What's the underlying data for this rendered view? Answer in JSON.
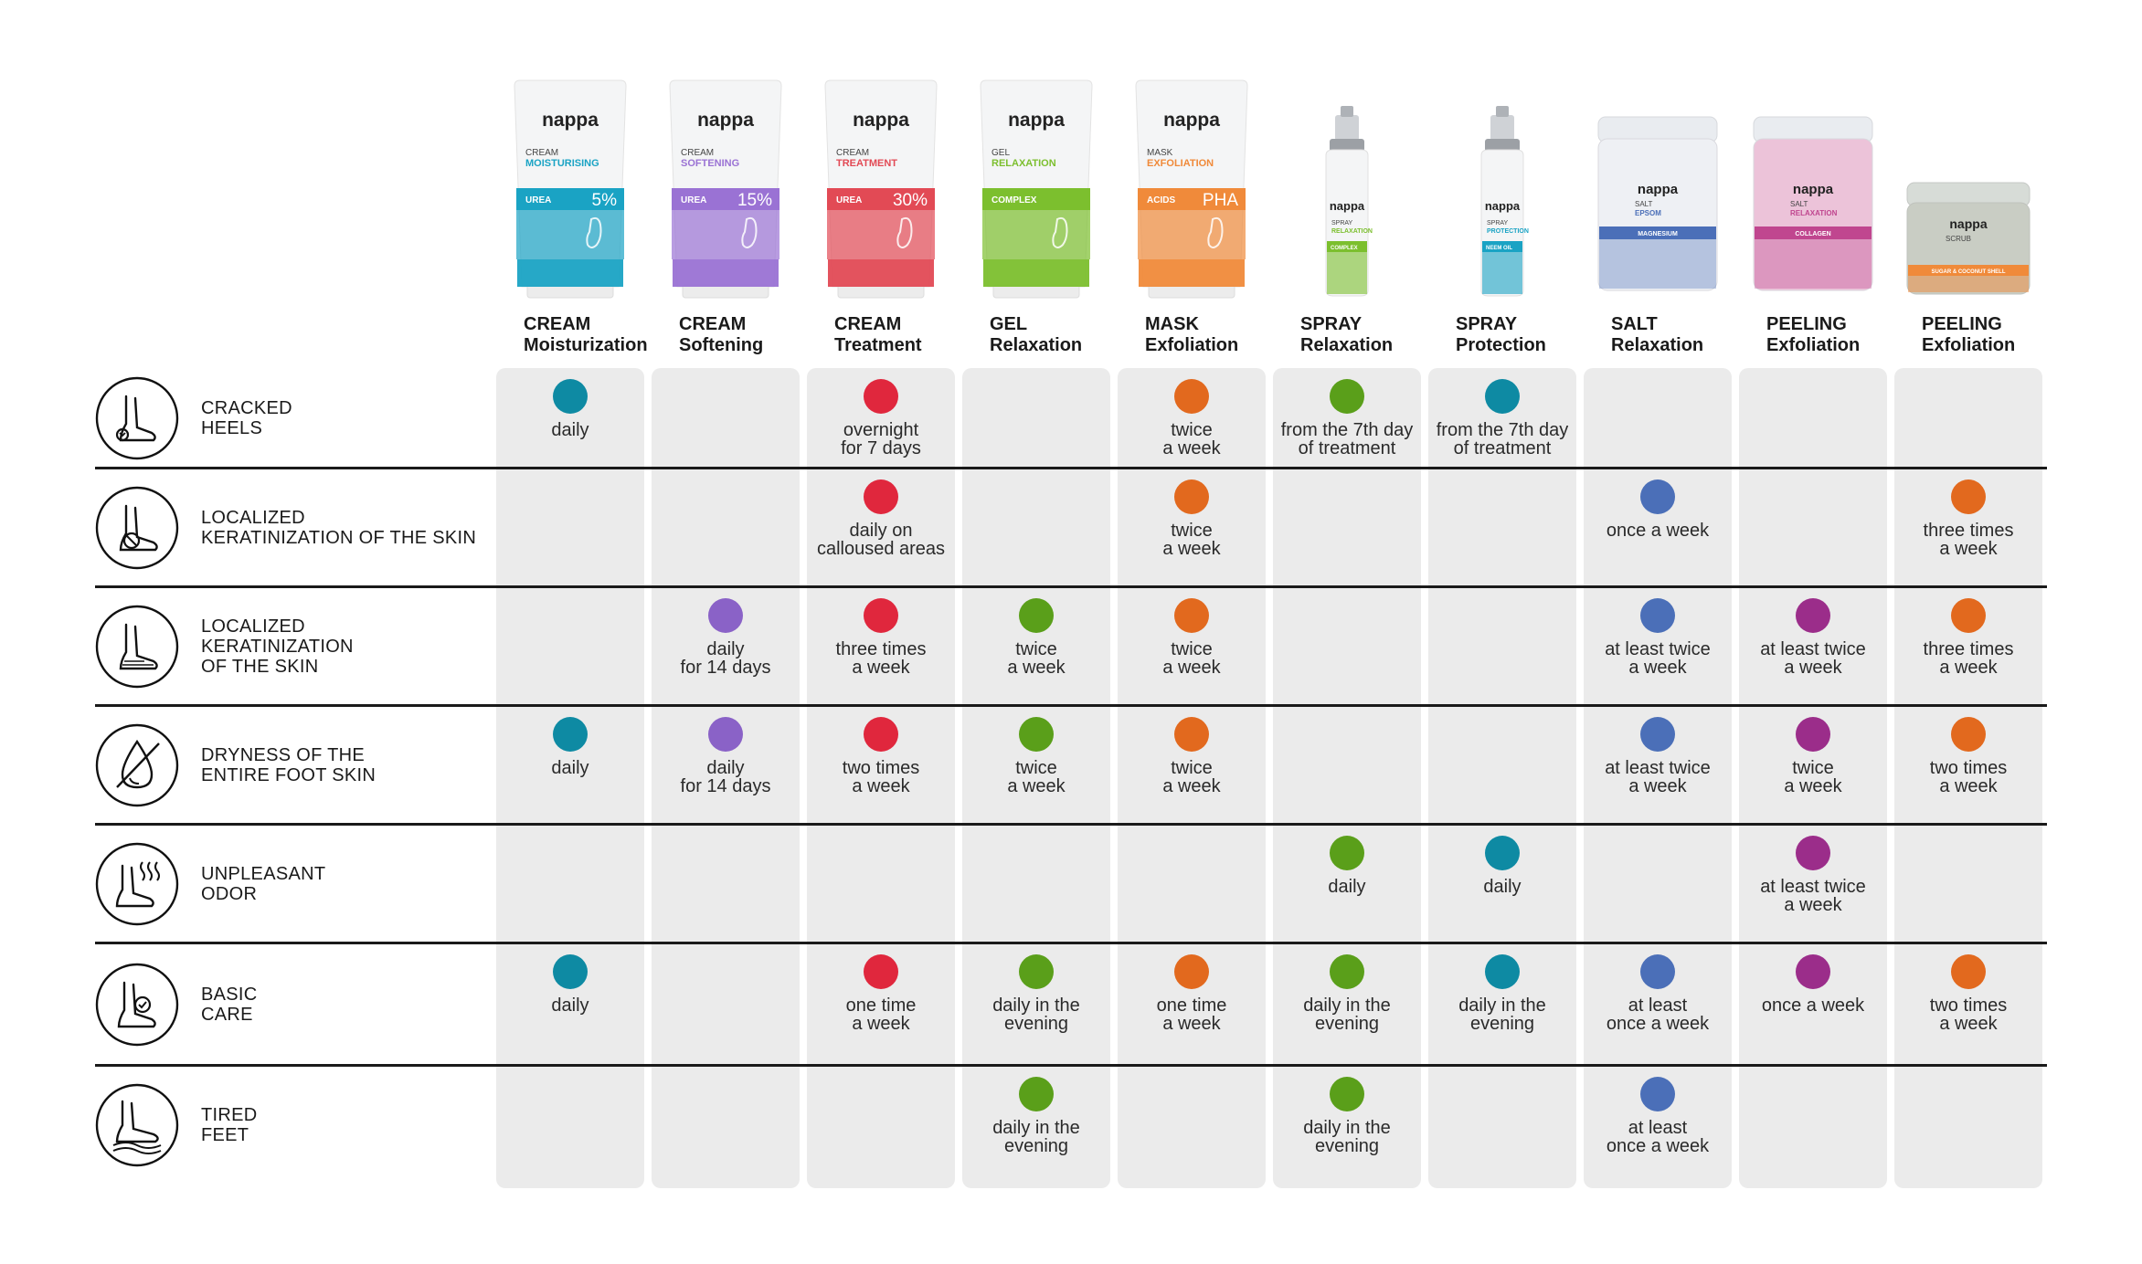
{
  "colors": {
    "teal": "#0e8aa3",
    "violet": "#8a62c7",
    "red": "#e0273d",
    "green": "#5a9f1a",
    "orange": "#e2691e",
    "blue": "#4b6fb8",
    "magenta": "#9b2d8a",
    "column_bg": "#ebebeb",
    "separator": "#1a1a1a"
  },
  "products": [
    {
      "brand": "nappa",
      "pack_line1": "CREAM",
      "pack_line2": "MOISTURISING",
      "tag_left": "UREA",
      "tag_right": "5%",
      "name_line1": "CREAM",
      "name_line2": "Moisturization",
      "color": "#1aa3c4",
      "kind": "tube"
    },
    {
      "brand": "nappa",
      "pack_line1": "CREAM",
      "pack_line2": "SOFTENING",
      "tag_left": "UREA",
      "tag_right": "15%",
      "name_line1": "CREAM",
      "name_line2": "Softening",
      "color": "#9a72d4",
      "kind": "tube"
    },
    {
      "brand": "nappa",
      "pack_line1": "CREAM",
      "pack_line2": "TREATMENT",
      "tag_left": "UREA",
      "tag_right": "30%",
      "name_line1": "CREAM",
      "name_line2": "Treatment",
      "color": "#e24a55",
      "kind": "tube"
    },
    {
      "brand": "nappa",
      "pack_line1": "GEL",
      "pack_line2": "RELAXATION",
      "tag_left": "COMPLEX",
      "tag_right": "",
      "name_line1": "GEL",
      "name_line2": "Relaxation",
      "color": "#7cbf2e",
      "kind": "tube"
    },
    {
      "brand": "nappa",
      "pack_line1": "MASK",
      "pack_line2": "EXFOLIATION",
      "tag_left": "ACIDS",
      "tag_right": "PHA",
      "name_line1": "MASK",
      "name_line2": "Exfoliation",
      "color": "#f08a3a",
      "kind": "tube"
    },
    {
      "brand": "nappa",
      "pack_line1": "SPRAY",
      "pack_line2": "RELAXATION",
      "tag_left": "COMPLEX",
      "tag_right": "",
      "name_line1": "SPRAY",
      "name_line2": "Relaxation",
      "color": "#7cbf2e",
      "kind": "spray"
    },
    {
      "brand": "nappa",
      "pack_line1": "SPRAY",
      "pack_line2": "PROTECTION",
      "tag_left": "NEEM OIL",
      "tag_right": "",
      "name_line1": "SPRAY",
      "name_line2": "Protection",
      "color": "#1aa3c4",
      "kind": "spray"
    },
    {
      "brand": "nappa",
      "pack_line1": "SALT",
      "pack_line2": "EPSOM",
      "tag_left": "MAGNESIUM",
      "tag_right": "",
      "name_line1": "SALT",
      "name_line2": "Relaxation",
      "color": "#4b6fb8",
      "kind": "jar"
    },
    {
      "brand": "nappa",
      "pack_line1": "SALT",
      "pack_line2": "RELAXATION",
      "tag_left": "COLLAGEN",
      "tag_right": "",
      "name_line1": "PEELING",
      "name_line2": "Exfoliation",
      "color": "#c0468f",
      "kind": "jar-pink"
    },
    {
      "brand": "nappa",
      "pack_line1": "SCRUB",
      "pack_line2": "",
      "tag_left": "SUGAR & COCONUT SHELL",
      "tag_right": "",
      "name_line1": "PEELING",
      "name_line2": "Exfoliation",
      "color": "#f08a3a",
      "kind": "jar-low"
    }
  ],
  "rows": [
    {
      "label_lines": [
        "CRACKED",
        "HEELS"
      ],
      "icon": "cracked-heel-icon",
      "cells": [
        {
          "col": 0,
          "color": "teal",
          "lines": [
            "daily"
          ]
        },
        {
          "col": 2,
          "color": "red",
          "lines": [
            "overnight",
            "for 7 days"
          ]
        },
        {
          "col": 4,
          "color": "orange",
          "lines": [
            "twice",
            "a week"
          ]
        },
        {
          "col": 5,
          "color": "green",
          "lines": [
            "from the 7th day",
            "of treatment"
          ]
        },
        {
          "col": 6,
          "color": "teal",
          "lines": [
            "from the 7th day",
            "of treatment"
          ]
        }
      ]
    },
    {
      "label_lines": [
        "LOCALIZED",
        "KERATINIZATION OF THE SKIN"
      ],
      "icon": "heel-callus-icon",
      "cells": [
        {
          "col": 2,
          "color": "red",
          "lines": [
            "daily on",
            "calloused areas"
          ]
        },
        {
          "col": 4,
          "color": "orange",
          "lines": [
            "twice",
            "a week"
          ]
        },
        {
          "col": 7,
          "color": "blue",
          "lines": [
            "once a week"
          ]
        },
        {
          "col": 9,
          "color": "orange",
          "lines": [
            "three times",
            "a week"
          ]
        }
      ]
    },
    {
      "label_lines": [
        "LOCALIZED",
        "KERATINIZATION",
        "OF THE SKIN"
      ],
      "icon": "foot-sole-icon",
      "cells": [
        {
          "col": 1,
          "color": "violet",
          "lines": [
            "daily",
            "for 14 days"
          ]
        },
        {
          "col": 2,
          "color": "red",
          "lines": [
            "three times",
            "a week"
          ]
        },
        {
          "col": 3,
          "color": "green",
          "lines": [
            "twice",
            "a week"
          ]
        },
        {
          "col": 4,
          "color": "orange",
          "lines": [
            "twice",
            "a week"
          ]
        },
        {
          "col": 7,
          "color": "blue",
          "lines": [
            "at least twice",
            "a week"
          ]
        },
        {
          "col": 8,
          "color": "magenta",
          "lines": [
            "at least twice",
            "a week"
          ]
        },
        {
          "col": 9,
          "color": "orange",
          "lines": [
            "three times",
            "a week"
          ]
        }
      ]
    },
    {
      "label_lines": [
        "DRYNESS OF THE",
        "ENTIRE FOOT SKIN"
      ],
      "icon": "no-water-drop-icon",
      "cells": [
        {
          "col": 0,
          "color": "teal",
          "lines": [
            "daily"
          ]
        },
        {
          "col": 1,
          "color": "violet",
          "lines": [
            "daily",
            "for 14 days"
          ]
        },
        {
          "col": 2,
          "color": "red",
          "lines": [
            "two times",
            "a week"
          ]
        },
        {
          "col": 3,
          "color": "green",
          "lines": [
            "twice",
            "a week"
          ]
        },
        {
          "col": 4,
          "color": "orange",
          "lines": [
            "twice",
            "a week"
          ]
        },
        {
          "col": 7,
          "color": "blue",
          "lines": [
            "at least twice",
            "a week"
          ]
        },
        {
          "col": 8,
          "color": "magenta",
          "lines": [
            "twice",
            "a week"
          ]
        },
        {
          "col": 9,
          "color": "orange",
          "lines": [
            "two times",
            "a week"
          ]
        }
      ]
    },
    {
      "label_lines": [
        "UNPLEASANT",
        "ODOR"
      ],
      "icon": "foot-odor-icon",
      "cells": [
        {
          "col": 5,
          "color": "green",
          "lines": [
            "daily"
          ]
        },
        {
          "col": 6,
          "color": "teal",
          "lines": [
            "daily"
          ]
        },
        {
          "col": 8,
          "color": "magenta",
          "lines": [
            "at least twice",
            "a week"
          ]
        }
      ]
    },
    {
      "label_lines": [
        "BASIC",
        "CARE"
      ],
      "icon": "foot-check-icon",
      "cells": [
        {
          "col": 0,
          "color": "teal",
          "lines": [
            "daily"
          ]
        },
        {
          "col": 2,
          "color": "red",
          "lines": [
            "one time",
            "a week"
          ]
        },
        {
          "col": 3,
          "color": "green",
          "lines": [
            "daily in the",
            "evening"
          ]
        },
        {
          "col": 4,
          "color": "orange",
          "lines": [
            "one time",
            "a week"
          ]
        },
        {
          "col": 5,
          "color": "green",
          "lines": [
            "daily in the",
            "evening"
          ]
        },
        {
          "col": 6,
          "color": "teal",
          "lines": [
            "daily in the",
            "evening"
          ]
        },
        {
          "col": 7,
          "color": "blue",
          "lines": [
            "at least",
            "once a week"
          ]
        },
        {
          "col": 8,
          "color": "magenta",
          "lines": [
            "once a week"
          ]
        },
        {
          "col": 9,
          "color": "orange",
          "lines": [
            "two times",
            "a week"
          ]
        }
      ]
    },
    {
      "label_lines": [
        "TIRED",
        "FEET"
      ],
      "icon": "tired-feet-icon",
      "cells": [
        {
          "col": 3,
          "color": "green",
          "lines": [
            "daily in the",
            "evening"
          ]
        },
        {
          "col": 5,
          "color": "green",
          "lines": [
            "daily in the",
            "evening"
          ]
        },
        {
          "col": 7,
          "color": "blue",
          "lines": [
            "at least",
            "once a week"
          ]
        }
      ]
    }
  ]
}
